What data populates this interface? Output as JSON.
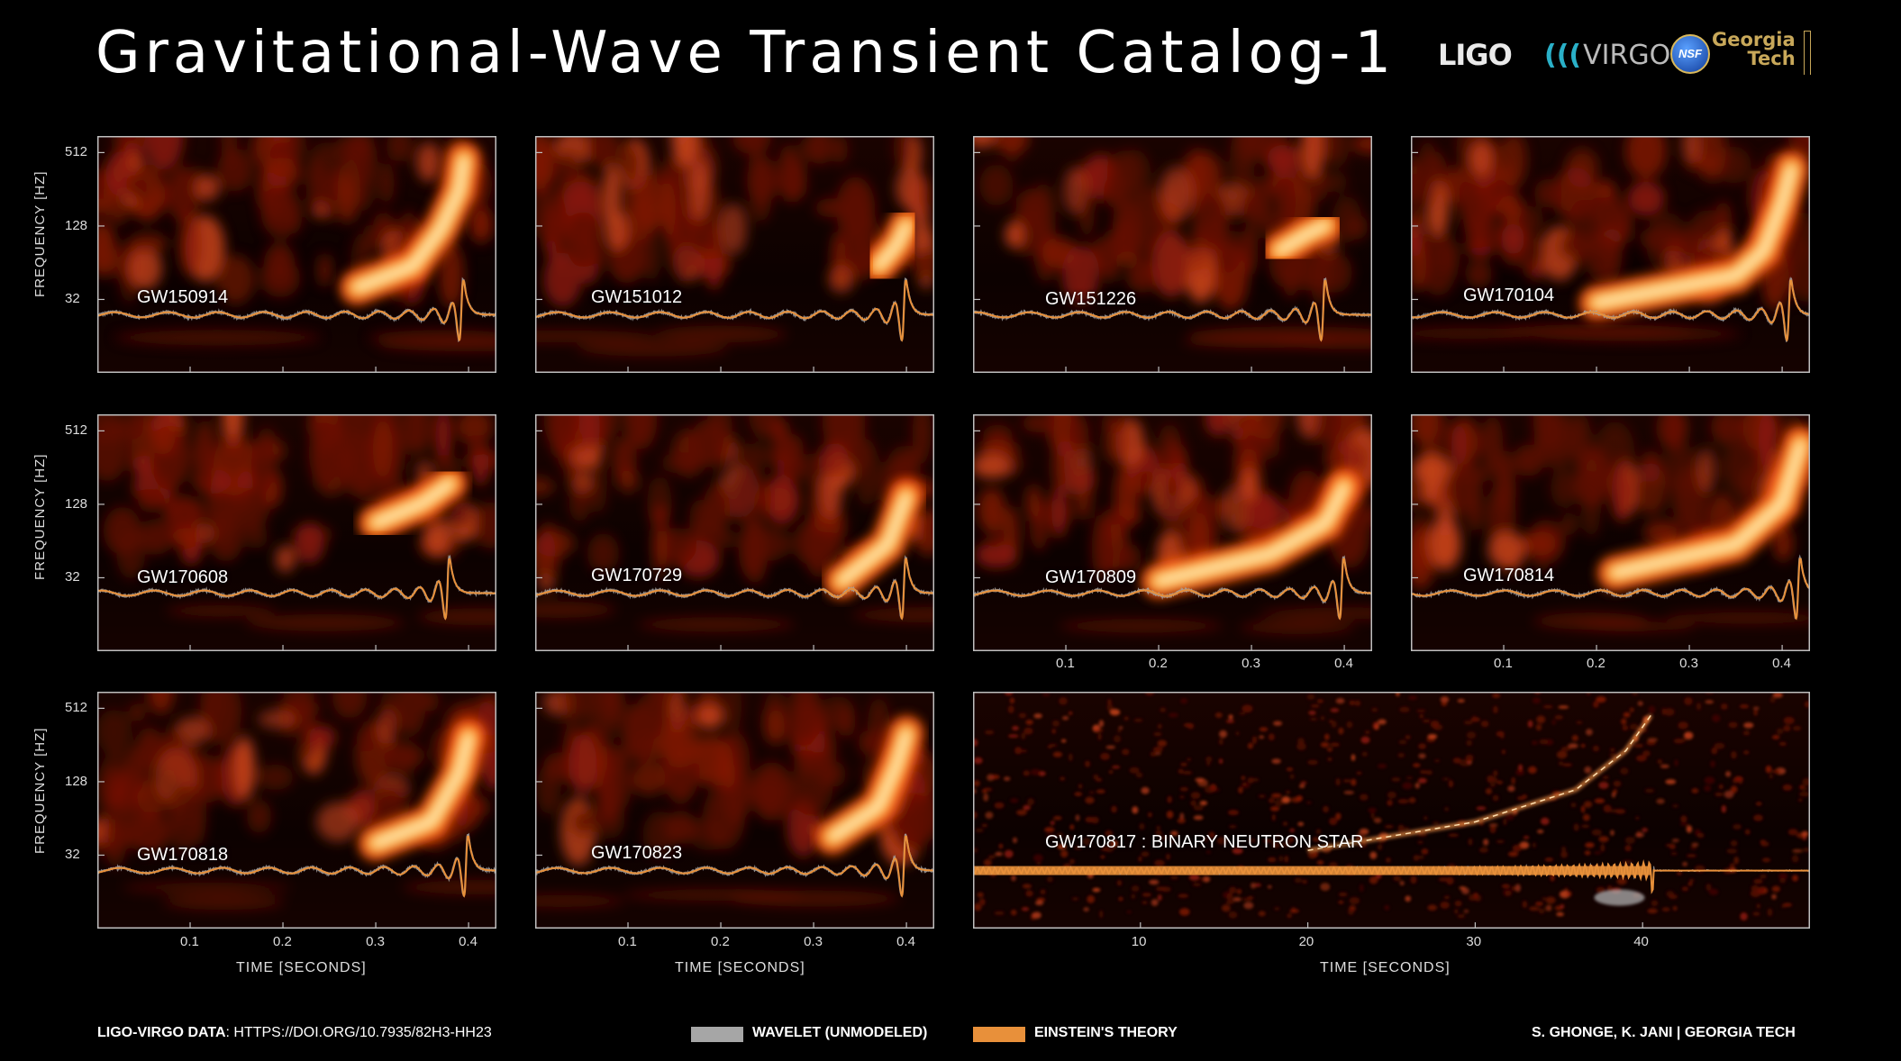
{
  "header": {
    "title": "Gravitational-Wave Transient Catalog-1",
    "logos": {
      "ligo": "LIGO",
      "virgo": "VIRGO",
      "nsf": "NSF",
      "gt_line1": "Georgia",
      "gt_line2": "Tech"
    }
  },
  "colors": {
    "wavelet": "#a6a6a6",
    "einstein": "#e8903a",
    "background": "#000000",
    "frame": "#bfbfbf"
  },
  "axes": {
    "ylabel": "FREQUENCY   [HZ]",
    "yticks": [
      "512",
      "128",
      "32"
    ],
    "xtitle": "TIME  [SECONDS]",
    "xticks": [
      "0.1",
      "0.2",
      "0.3",
      "0.4"
    ],
    "bns_xticks": [
      "10",
      "20",
      "30",
      "40"
    ]
  },
  "chart_data": [
    {
      "type": "heatmap",
      "event": "GW150914",
      "ylim": [
        8,
        700
      ],
      "yscale": "log",
      "xlim": [
        0,
        0.43
      ],
      "chirp": [
        [
          0.28,
          40
        ],
        [
          0.34,
          60
        ],
        [
          0.37,
          120
        ],
        [
          0.39,
          250
        ],
        [
          0.395,
          450
        ]
      ]
    },
    {
      "type": "heatmap",
      "event": "GW151012",
      "ylim": [
        8,
        700
      ],
      "yscale": "log",
      "xlim": [
        0,
        0.43
      ],
      "chirp": [
        [
          0.37,
          60
        ],
        [
          0.39,
          90
        ],
        [
          0.4,
          130
        ]
      ]
    },
    {
      "type": "heatmap",
      "event": "GW151226",
      "ylim": [
        8,
        700
      ],
      "yscale": "log",
      "xlim": [
        0,
        0.43
      ],
      "chirp": [
        [
          0.33,
          80
        ],
        [
          0.36,
          110
        ],
        [
          0.38,
          130
        ]
      ]
    },
    {
      "type": "heatmap",
      "event": "GW170104",
      "ylim": [
        8,
        700
      ],
      "yscale": "log",
      "xlim": [
        0,
        0.43
      ],
      "chirp": [
        [
          0.2,
          30
        ],
        [
          0.35,
          50
        ],
        [
          0.38,
          80
        ],
        [
          0.4,
          200
        ],
        [
          0.41,
          380
        ]
      ]
    },
    {
      "type": "heatmap",
      "event": "GW170608",
      "ylim": [
        8,
        700
      ],
      "yscale": "log",
      "xlim": [
        0,
        0.43
      ],
      "chirp": [
        [
          0.3,
          90
        ],
        [
          0.35,
          130
        ],
        [
          0.38,
          190
        ]
      ]
    },
    {
      "type": "heatmap",
      "event": "GW170729",
      "ylim": [
        8,
        700
      ],
      "yscale": "log",
      "xlim": [
        0,
        0.43
      ],
      "chirp": [
        [
          0.33,
          30
        ],
        [
          0.38,
          60
        ],
        [
          0.4,
          150
        ]
      ]
    },
    {
      "type": "heatmap",
      "event": "GW170809",
      "ylim": [
        8,
        700
      ],
      "yscale": "log",
      "xlim": [
        0,
        0.43
      ],
      "chirp": [
        [
          0.2,
          30
        ],
        [
          0.32,
          50
        ],
        [
          0.38,
          90
        ],
        [
          0.4,
          180
        ]
      ]
    },
    {
      "type": "heatmap",
      "event": "GW170814",
      "ylim": [
        8,
        700
      ],
      "yscale": "log",
      "xlim": [
        0,
        0.43
      ],
      "chirp": [
        [
          0.22,
          35
        ],
        [
          0.35,
          60
        ],
        [
          0.4,
          130
        ],
        [
          0.42,
          400
        ]
      ]
    },
    {
      "type": "heatmap",
      "event": "GW170818",
      "ylim": [
        8,
        700
      ],
      "yscale": "log",
      "xlim": [
        0,
        0.43
      ],
      "chirp": [
        [
          0.3,
          40
        ],
        [
          0.36,
          60
        ],
        [
          0.39,
          150
        ],
        [
          0.4,
          300
        ]
      ]
    },
    {
      "type": "heatmap",
      "event": "GW170823",
      "ylim": [
        8,
        700
      ],
      "yscale": "log",
      "xlim": [
        0,
        0.43
      ],
      "chirp": [
        [
          0.32,
          45
        ],
        [
          0.37,
          80
        ],
        [
          0.39,
          180
        ],
        [
          0.4,
          320
        ]
      ]
    },
    {
      "type": "heatmap",
      "event": "GW170817 : BINARY NEUTRON STAR",
      "ylim": [
        8,
        700
      ],
      "yscale": "log",
      "xlim": [
        0,
        50
      ],
      "chirp": [
        [
          20,
          35
        ],
        [
          30,
          60
        ],
        [
          36,
          110
        ],
        [
          39,
          230
        ],
        [
          40.5,
          450
        ]
      ]
    }
  ],
  "legend": {
    "wavelet_label": "WAVELET (UNMODELED)",
    "einstein_label": "EINSTEIN'S THEORY"
  },
  "footer": {
    "data_label": "LIGO-VIRGO DATA",
    "data_link": ": HTTPS://DOI.ORG/10.7935/82H3-HH23",
    "credit": "S. GHONGE, K. JANI | GEORGIA TECH"
  }
}
